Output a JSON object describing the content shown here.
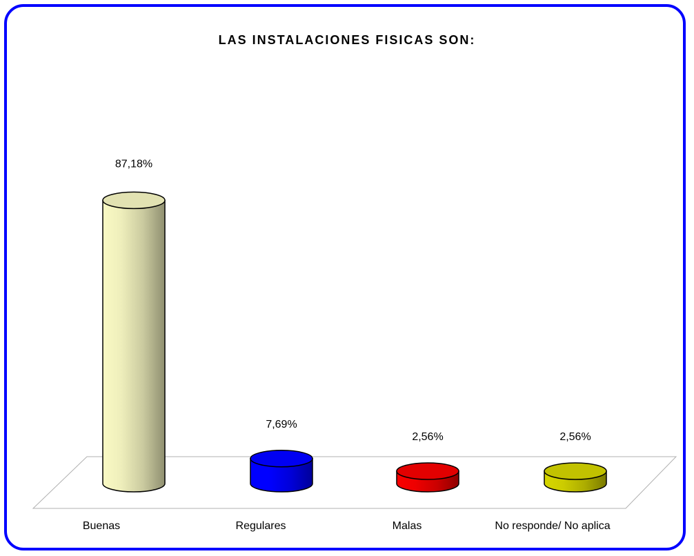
{
  "chart_data": {
    "type": "bar",
    "title": "LAS INSTALACIONES FISICAS SON:",
    "categories": [
      "Buenas",
      "Regulares",
      "Malas",
      "No responde/ No aplica"
    ],
    "values": [
      87.18,
      7.69,
      2.56,
      2.56
    ],
    "value_labels": [
      "87,18%",
      "7,69%",
      "2,56%",
      "2,56%"
    ],
    "ylim": [
      0,
      100
    ],
    "grid": false,
    "legend": "none",
    "bar_style": "3d-cylinder",
    "colors": [
      "#eeeebb",
      "#0000ff",
      "#ee0000",
      "#cccc00"
    ]
  },
  "frame": {
    "border_color": "#0000ff"
  }
}
